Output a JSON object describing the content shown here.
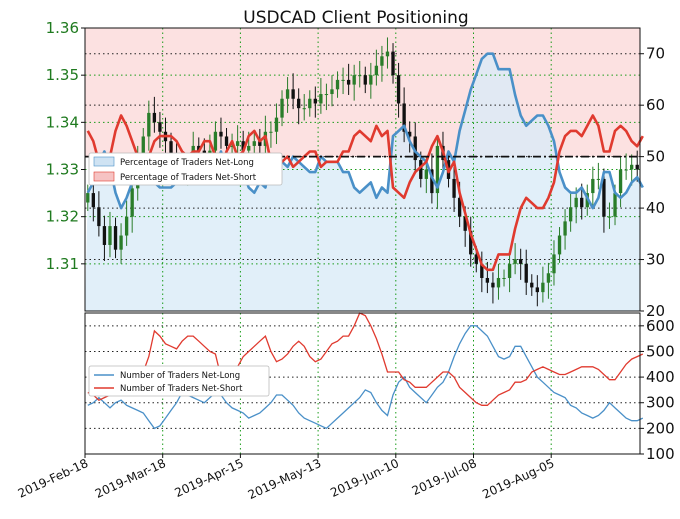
{
  "chart_data": [
    {
      "type": "candlestick+line",
      "title": "USDCAD Client Positioning",
      "x_tick_labels": [
        "2019-Feb-18",
        "2019-Mar-18",
        "2019-Apr-15",
        "2019-May-13",
        "2019-Jun-10",
        "2019-Jul-08",
        "2019-Aug-05"
      ],
      "left_axis": {
        "ylim": [
          1.3,
          1.36
        ],
        "ticks": [
          "1.31",
          "1.32",
          "1.33",
          "1.34",
          "1.35",
          "1.36"
        ]
      },
      "right_axis": {
        "ylim": [
          20,
          75
        ],
        "ticks": [
          "20",
          "30",
          "40",
          "50",
          "60",
          "70"
        ]
      },
      "reference_line": 50,
      "legend": [
        "Percentage of Traders Net-Long",
        "Percentage of Traders Net-Short"
      ],
      "grid": true,
      "colors": {
        "net_long": "#4a90c8",
        "net_short": "#e03a2f",
        "price_up": "#2a7d2a",
        "price_down": "#111111",
        "long_fill": "#d9ebf7",
        "short_fill": "#fbdcdc"
      },
      "price_close": [
        1.325,
        1.322,
        1.318,
        1.314,
        1.318,
        1.313,
        1.316,
        1.32,
        1.326,
        1.332,
        1.337,
        1.342,
        1.34,
        1.338,
        1.336,
        1.333,
        1.33,
        1.33,
        1.331,
        1.335,
        1.334,
        1.333,
        1.334,
        1.338,
        1.337,
        1.335,
        1.335,
        1.336,
        1.334,
        1.335,
        1.336,
        1.335,
        1.338,
        1.338,
        1.341,
        1.345,
        1.347,
        1.345,
        1.343,
        1.343,
        1.345,
        1.344,
        1.346,
        1.346,
        1.347,
        1.349,
        1.349,
        1.348,
        1.35,
        1.35,
        1.348,
        1.35,
        1.352,
        1.354,
        1.355,
        1.35,
        1.344,
        1.338,
        1.337,
        1.332,
        1.328,
        1.33,
        1.325,
        1.335,
        1.332,
        1.328,
        1.324,
        1.32,
        1.317,
        1.312,
        1.31,
        1.307,
        1.306,
        1.305,
        1.307,
        1.307,
        1.31,
        1.311,
        1.31,
        1.306,
        1.305,
        1.304,
        1.306,
        1.308,
        1.312,
        1.316,
        1.319,
        1.322,
        1.324,
        1.322,
        1.325,
        1.328,
        1.328,
        1.32,
        1.32,
        1.325,
        1.33,
        1.33,
        1.331,
        1.33
      ],
      "net_long_pct": [
        43,
        45,
        49,
        51,
        48,
        43,
        40,
        42,
        45,
        48,
        49,
        48,
        45,
        44,
        44,
        44,
        45,
        47,
        48,
        47,
        47,
        45,
        45,
        48,
        51,
        47,
        45,
        48,
        47,
        44,
        43,
        45,
        44,
        49,
        50,
        49,
        48,
        50,
        49,
        48,
        47,
        47,
        50,
        49,
        49,
        49,
        47,
        47,
        44,
        43,
        44,
        45,
        42,
        44,
        43,
        54,
        55,
        56,
        53,
        51,
        50,
        49,
        46,
        44,
        47,
        51,
        49,
        55,
        59,
        63,
        66,
        69,
        70,
        70,
        67,
        67,
        67,
        62,
        58,
        56,
        57,
        58,
        58,
        56,
        53,
        47,
        44,
        43,
        43,
        44,
        42,
        40,
        42,
        47,
        47,
        43,
        42,
        43,
        45,
        46,
        44
      ],
      "net_short_pct": [
        55,
        53,
        49,
        47,
        50,
        55,
        58,
        56,
        53,
        50,
        49,
        50,
        53,
        54,
        54,
        54,
        53,
        51,
        50,
        51,
        51,
        53,
        53,
        50,
        47,
        51,
        53,
        50,
        51,
        54,
        55,
        53,
        54,
        49,
        48,
        49,
        50,
        48,
        49,
        50,
        51,
        51,
        48,
        49,
        49,
        49,
        51,
        51,
        54,
        55,
        54,
        53,
        56,
        54,
        55,
        44,
        43,
        42,
        45,
        47,
        48,
        49,
        52,
        54,
        51,
        47,
        49,
        43,
        39,
        35,
        32,
        29,
        28,
        28,
        31,
        31,
        31,
        36,
        40,
        42,
        41,
        40,
        40,
        42,
        45,
        51,
        54,
        55,
        55,
        54,
        56,
        58,
        56,
        51,
        51,
        55,
        56,
        55,
        53,
        52,
        54
      ]
    },
    {
      "type": "line",
      "right_axis": {
        "ylim": [
          100,
          650
        ],
        "ticks": [
          "100",
          "200",
          "300",
          "400",
          "500",
          "600"
        ]
      },
      "legend": [
        "Number of Traders Net-Long",
        "Number of Traders Net-Short"
      ],
      "grid": true,
      "colors": {
        "net_long": "#4a90c8",
        "net_short": "#e03a2f"
      },
      "traders_net_long": [
        290,
        300,
        320,
        300,
        280,
        300,
        310,
        290,
        280,
        270,
        260,
        230,
        200,
        210,
        240,
        270,
        300,
        340,
        330,
        320,
        310,
        300,
        320,
        340,
        330,
        300,
        280,
        270,
        260,
        240,
        250,
        260,
        280,
        300,
        330,
        330,
        310,
        290,
        260,
        240,
        230,
        220,
        210,
        200,
        220,
        240,
        260,
        280,
        300,
        320,
        350,
        340,
        300,
        270,
        250,
        330,
        380,
        400,
        360,
        340,
        320,
        300,
        330,
        360,
        380,
        420,
        480,
        530,
        570,
        600,
        600,
        580,
        560,
        520,
        480,
        470,
        480,
        520,
        520,
        480,
        440,
        400,
        380,
        360,
        340,
        330,
        320,
        290,
        280,
        260,
        250,
        240,
        250,
        270,
        300,
        280,
        260,
        240,
        230,
        230,
        240
      ],
      "traders_net_short": [
        340,
        330,
        310,
        320,
        330,
        330,
        330,
        340,
        360,
        380,
        420,
        480,
        580,
        560,
        530,
        520,
        510,
        540,
        560,
        560,
        540,
        520,
        500,
        490,
        400,
        390,
        390,
        440,
        480,
        500,
        520,
        540,
        560,
        500,
        460,
        470,
        490,
        520,
        540,
        520,
        480,
        460,
        470,
        500,
        530,
        540,
        560,
        560,
        600,
        650,
        640,
        600,
        550,
        490,
        420,
        420,
        420,
        390,
        380,
        360,
        360,
        360,
        380,
        400,
        420,
        420,
        400,
        360,
        340,
        320,
        300,
        290,
        290,
        310,
        330,
        340,
        350,
        380,
        380,
        390,
        420,
        430,
        440,
        430,
        420,
        410,
        410,
        420,
        430,
        440,
        440,
        440,
        430,
        410,
        390,
        390,
        420,
        450,
        470,
        480,
        490
      ]
    }
  ]
}
